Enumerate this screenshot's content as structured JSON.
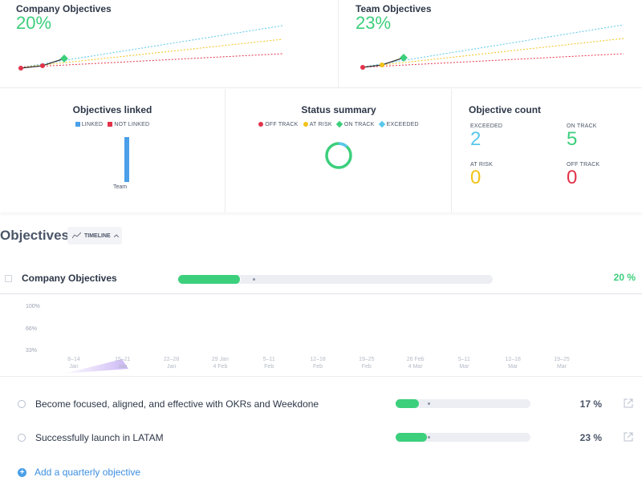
{
  "trend_cards": [
    {
      "title": "Company Objectives",
      "percent": "20%"
    },
    {
      "title": "Team Objectives",
      "percent": "23%"
    }
  ],
  "objectives_linked": {
    "title": "Objectives linked",
    "legend": [
      "LINKED",
      "NOT LINKED"
    ],
    "bar_label": "Team"
  },
  "status_summary": {
    "title": "Status summary",
    "legend": [
      "OFF TRACK",
      "AT RISK",
      "ON TRACK",
      "EXCEEDED"
    ]
  },
  "objective_count": {
    "title": "Objective count",
    "exceeded_label": "EXCEEDED",
    "exceeded_value": "2",
    "on_track_label": "ON TRACK",
    "on_track_value": "5",
    "at_risk_label": "AT RISK",
    "at_risk_value": "0",
    "off_track_label": "OFF TRACK",
    "off_track_value": "0"
  },
  "objectives": {
    "heading": "Objectives",
    "view_button": "TIMELINE",
    "company": {
      "name": "Company Objectives",
      "percent": "20 %",
      "progress": 0.2
    },
    "timeline": {
      "y_labels": [
        "100%",
        "66%",
        "33%"
      ],
      "x_labels": [
        [
          "8–14",
          "Jan"
        ],
        [
          "15–21",
          "Jan"
        ],
        [
          "22–28",
          "Jan"
        ],
        [
          "29 Jan",
          "4 Feb"
        ],
        [
          "5–11",
          "Feb"
        ],
        [
          "12–18",
          "Feb"
        ],
        [
          "19–25",
          "Feb"
        ],
        [
          "26 Feb",
          "4 Mar"
        ],
        [
          "5–11",
          "Mar"
        ],
        [
          "12–18",
          "Mar"
        ],
        [
          "19–25",
          "Mar"
        ]
      ]
    },
    "items": [
      {
        "name": "Become focused, aligned, and effective with OKRs and Weekdone",
        "percent": "17 %",
        "progress": 0.17
      },
      {
        "name": "Successfully launch in LATAM",
        "percent": "23 %",
        "progress": 0.23
      }
    ],
    "add_label": "Add a quarterly objective"
  },
  "colors": {
    "green": "#3ccf7c",
    "red": "#e2334a",
    "yellow": "#f2c218",
    "blue": "#4a9fe8",
    "cyan": "#58c8ec"
  }
}
